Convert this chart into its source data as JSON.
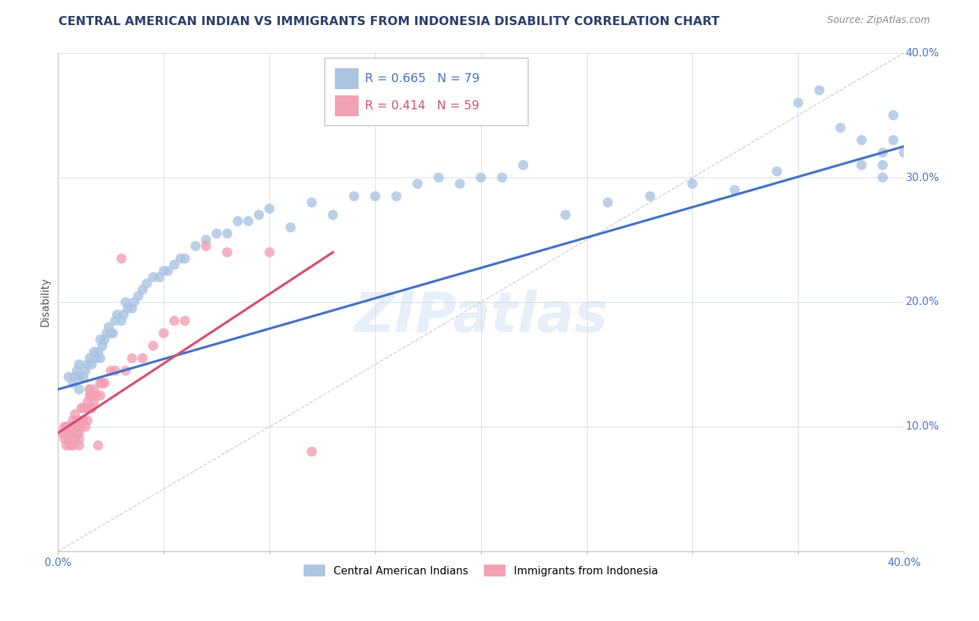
{
  "title": "CENTRAL AMERICAN INDIAN VS IMMIGRANTS FROM INDONESIA DISABILITY CORRELATION CHART",
  "source": "Source: ZipAtlas.com",
  "ylabel": "Disability",
  "xlim": [
    0.0,
    0.4
  ],
  "ylim": [
    0.0,
    0.4
  ],
  "legend_r1": "R = 0.665",
  "legend_n1": "N = 79",
  "legend_r2": "R = 0.414",
  "legend_n2": "N = 59",
  "blue_color": "#aac4e2",
  "pink_color": "#f2a0b4",
  "blue_line_color": "#4472c4",
  "pink_line_color": "#d45070",
  "diagonal_color": "#c0a8b0",
  "title_color": "#2c3e6b",
  "axis_label_color": "#4472c4",
  "watermark": "ZIPatlas",
  "blue_scatter_x": [
    0.005,
    0.007,
    0.008,
    0.009,
    0.01,
    0.01,
    0.01,
    0.012,
    0.013,
    0.014,
    0.015,
    0.015,
    0.016,
    0.017,
    0.018,
    0.019,
    0.02,
    0.02,
    0.021,
    0.022,
    0.023,
    0.024,
    0.025,
    0.026,
    0.027,
    0.028,
    0.03,
    0.031,
    0.032,
    0.033,
    0.035,
    0.036,
    0.038,
    0.04,
    0.042,
    0.045,
    0.048,
    0.05,
    0.052,
    0.055,
    0.058,
    0.06,
    0.065,
    0.07,
    0.075,
    0.08,
    0.085,
    0.09,
    0.095,
    0.1,
    0.11,
    0.12,
    0.13,
    0.14,
    0.15,
    0.16,
    0.17,
    0.18,
    0.19,
    0.2,
    0.21,
    0.22,
    0.24,
    0.26,
    0.28,
    0.3,
    0.32,
    0.34,
    0.35,
    0.36,
    0.37,
    0.38,
    0.38,
    0.39,
    0.39,
    0.39,
    0.395,
    0.395,
    0.4
  ],
  "blue_scatter_y": [
    0.14,
    0.135,
    0.14,
    0.145,
    0.13,
    0.14,
    0.15,
    0.14,
    0.145,
    0.15,
    0.13,
    0.155,
    0.15,
    0.16,
    0.155,
    0.16,
    0.155,
    0.17,
    0.165,
    0.17,
    0.175,
    0.18,
    0.175,
    0.175,
    0.185,
    0.19,
    0.185,
    0.19,
    0.2,
    0.195,
    0.195,
    0.2,
    0.205,
    0.21,
    0.215,
    0.22,
    0.22,
    0.225,
    0.225,
    0.23,
    0.235,
    0.235,
    0.245,
    0.25,
    0.255,
    0.255,
    0.265,
    0.265,
    0.27,
    0.275,
    0.26,
    0.28,
    0.27,
    0.285,
    0.285,
    0.285,
    0.295,
    0.3,
    0.295,
    0.3,
    0.3,
    0.31,
    0.27,
    0.28,
    0.285,
    0.295,
    0.29,
    0.305,
    0.36,
    0.37,
    0.34,
    0.31,
    0.33,
    0.3,
    0.31,
    0.32,
    0.33,
    0.35,
    0.32
  ],
  "pink_scatter_x": [
    0.002,
    0.003,
    0.003,
    0.004,
    0.004,
    0.004,
    0.005,
    0.005,
    0.005,
    0.006,
    0.006,
    0.007,
    0.007,
    0.007,
    0.008,
    0.008,
    0.008,
    0.009,
    0.009,
    0.01,
    0.01,
    0.01,
    0.01,
    0.01,
    0.011,
    0.011,
    0.012,
    0.012,
    0.013,
    0.013,
    0.014,
    0.014,
    0.015,
    0.015,
    0.015,
    0.016,
    0.016,
    0.017,
    0.017,
    0.018,
    0.019,
    0.02,
    0.02,
    0.021,
    0.022,
    0.025,
    0.027,
    0.03,
    0.032,
    0.035,
    0.04,
    0.045,
    0.05,
    0.055,
    0.06,
    0.07,
    0.08,
    0.1,
    0.12
  ],
  "pink_scatter_y": [
    0.095,
    0.09,
    0.1,
    0.085,
    0.095,
    0.1,
    0.09,
    0.095,
    0.1,
    0.085,
    0.1,
    0.085,
    0.095,
    0.105,
    0.09,
    0.1,
    0.11,
    0.095,
    0.105,
    0.085,
    0.09,
    0.095,
    0.1,
    0.105,
    0.1,
    0.115,
    0.105,
    0.115,
    0.1,
    0.115,
    0.105,
    0.12,
    0.115,
    0.125,
    0.13,
    0.115,
    0.125,
    0.12,
    0.13,
    0.125,
    0.085,
    0.125,
    0.135,
    0.135,
    0.135,
    0.145,
    0.145,
    0.235,
    0.145,
    0.155,
    0.155,
    0.165,
    0.175,
    0.185,
    0.185,
    0.245,
    0.24,
    0.24,
    0.08
  ],
  "blue_line_x": [
    0.0,
    0.4
  ],
  "blue_line_y": [
    0.13,
    0.325
  ],
  "pink_line_x": [
    0.0,
    0.13
  ],
  "pink_line_y": [
    0.095,
    0.24
  ],
  "grid_color": "#d8e0ec",
  "background_color": "#ffffff"
}
